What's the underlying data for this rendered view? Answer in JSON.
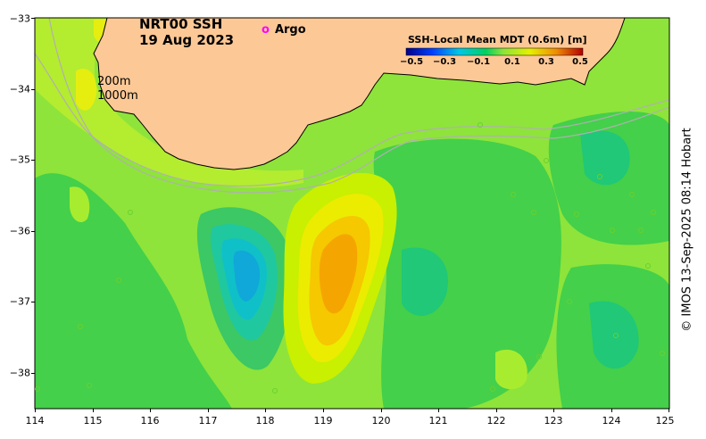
{
  "map": {
    "title_line1": "NRT00 SSH",
    "title_line2": "19 Aug 2023",
    "legend_marker": "o",
    "legend_label": "Argo",
    "isobath_200": "200m",
    "isobath_1000": "1000m",
    "credit": "© IMOS 13-Sep-2025 08:14 Hobart",
    "colors": {
      "land": "#fcc896",
      "background": "#8ee43a"
    }
  },
  "colorbar": {
    "title": "SSH-Local Mean MDT (0.6m) [m]",
    "ticks": [
      "−0.5",
      "−0.3",
      "−0.1",
      "0.1",
      "0.3",
      "0.5"
    ]
  },
  "axes": {
    "x_ticks": [
      "114",
      "115",
      "116",
      "117",
      "118",
      "119",
      "120",
      "121",
      "122",
      "123",
      "124",
      "125"
    ],
    "y_ticks": [
      "−33",
      "−34",
      "−35",
      "−36",
      "−37",
      "−38"
    ]
  }
}
